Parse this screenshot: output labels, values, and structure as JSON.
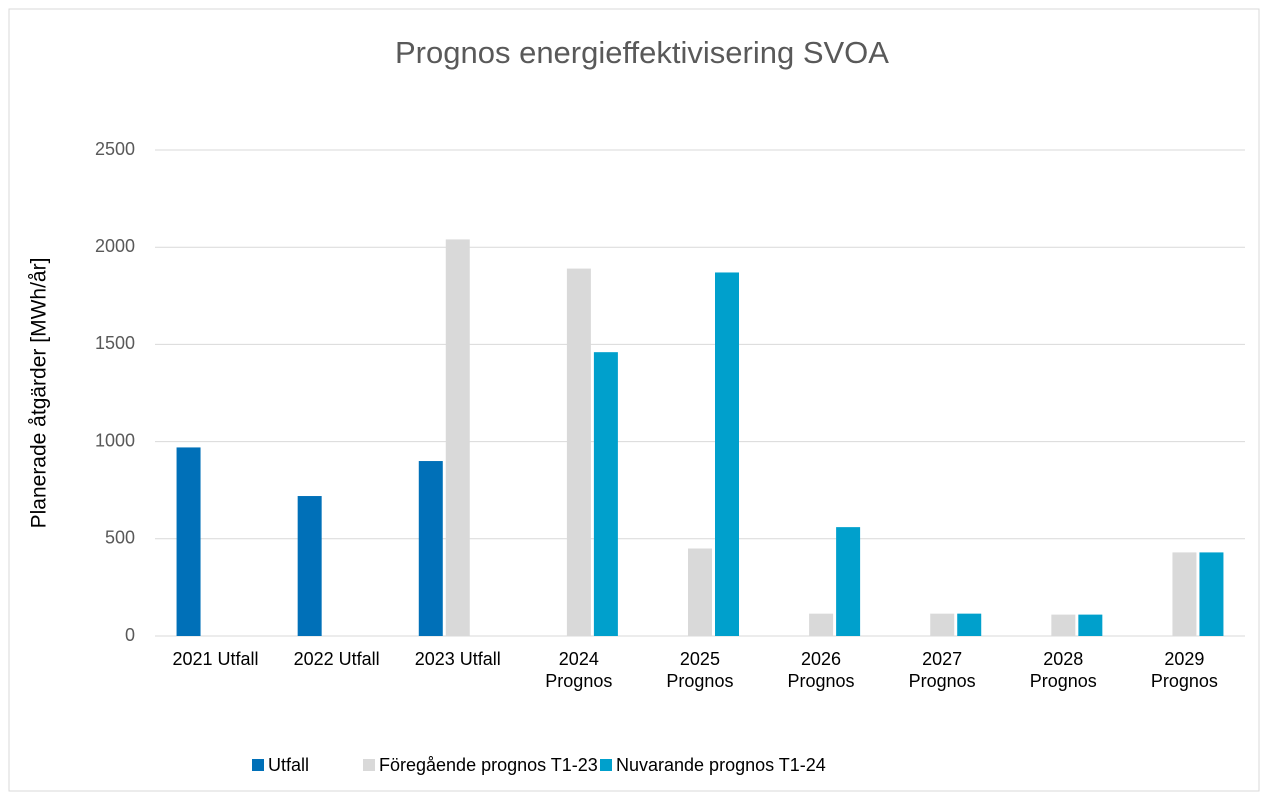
{
  "chart_data": {
    "type": "bar",
    "title": "Prognos energieffektivisering SVOA",
    "y_label": "Planerade åtgärder [MWh/år]",
    "categories": [
      "2021 Utfall",
      "2022 Utfall",
      "2023 Utfall",
      "2024\nPrognos",
      "2025\nPrognos",
      "2026\nPrognos",
      "2027\nPrognos",
      "2028\nPrognos",
      "2029\nPrognos"
    ],
    "series": [
      {
        "name": "Utfall",
        "color": "#0070b8",
        "values": [
          970,
          720,
          900,
          null,
          null,
          null,
          null,
          null,
          null
        ]
      },
      {
        "name": "Föregående prognos T1-23",
        "color": "#d9d9d9",
        "values": [
          null,
          null,
          2040,
          1890,
          450,
          115,
          115,
          110,
          430
        ]
      },
      {
        "name": "Nuvarande prognos T1-24",
        "color": "#00a0cc",
        "values": [
          null,
          null,
          null,
          1460,
          1870,
          560,
          115,
          110,
          430
        ]
      }
    ],
    "ylim": [
      0,
      2500
    ],
    "yticks": [
      0,
      500,
      1000,
      1500,
      2000,
      2500
    ],
    "grid": true,
    "legend": "bottom"
  }
}
